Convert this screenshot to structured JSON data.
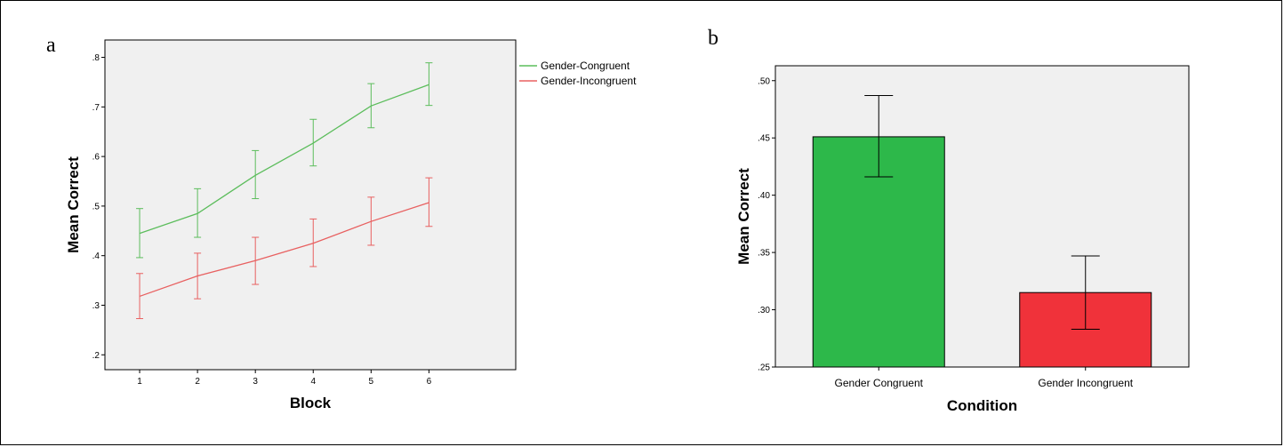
{
  "panels": {
    "a": {
      "letter": "a"
    },
    "b": {
      "letter": "b"
    }
  },
  "chart_data": [
    {
      "type": "line",
      "panel": "a",
      "xlabel": "Block",
      "ylabel": "Mean Correct",
      "x": [
        1,
        2,
        3,
        4,
        5,
        6
      ],
      "x_tick_labels": [
        "1",
        "2",
        "3",
        "4",
        "5",
        "6"
      ],
      "y_tick_labels": [
        ".2",
        ".3",
        ".4",
        ".5",
        ".6",
        ".7",
        ".8"
      ],
      "y_ticks": [
        0.2,
        0.3,
        0.4,
        0.5,
        0.6,
        0.7,
        0.8
      ],
      "xlim": [
        0.4,
        7.5
      ],
      "ylim": [
        0.17,
        0.835
      ],
      "grid": false,
      "legend": "top-right outside",
      "error_bars": true,
      "series": [
        {
          "name": "Gender-Congruent",
          "color": "#5cbd5c",
          "values": [
            0.445,
            0.485,
            0.562,
            0.627,
            0.702,
            0.745
          ],
          "err_low": [
            0.396,
            0.437,
            0.515,
            0.581,
            0.658,
            0.703
          ],
          "err_high": [
            0.495,
            0.535,
            0.612,
            0.675,
            0.747,
            0.789
          ]
        },
        {
          "name": "Gender-Incongruent",
          "color": "#e86060",
          "values": [
            0.318,
            0.359,
            0.39,
            0.425,
            0.469,
            0.507
          ],
          "err_low": [
            0.273,
            0.313,
            0.342,
            0.378,
            0.421,
            0.459
          ],
          "err_high": [
            0.364,
            0.405,
            0.437,
            0.474,
            0.518,
            0.557
          ]
        }
      ]
    },
    {
      "type": "bar",
      "panel": "b",
      "xlabel": "Condition",
      "ylabel": "Mean Correct",
      "categories": [
        "Gender Congruent",
        "Gender Incongruent"
      ],
      "values": [
        0.451,
        0.315
      ],
      "err_low": [
        0.416,
        0.283
      ],
      "err_high": [
        0.487,
        0.347
      ],
      "colors": [
        "#2db84a",
        "#f0323a"
      ],
      "y_ticks": [
        0.25,
        0.3,
        0.35,
        0.4,
        0.45,
        0.5
      ],
      "y_tick_labels": [
        ".25",
        ".30",
        ".35",
        ".40",
        ".45",
        ".50"
      ],
      "ylim": [
        0.25,
        0.513
      ],
      "grid": false,
      "error_bars": true
    }
  ]
}
